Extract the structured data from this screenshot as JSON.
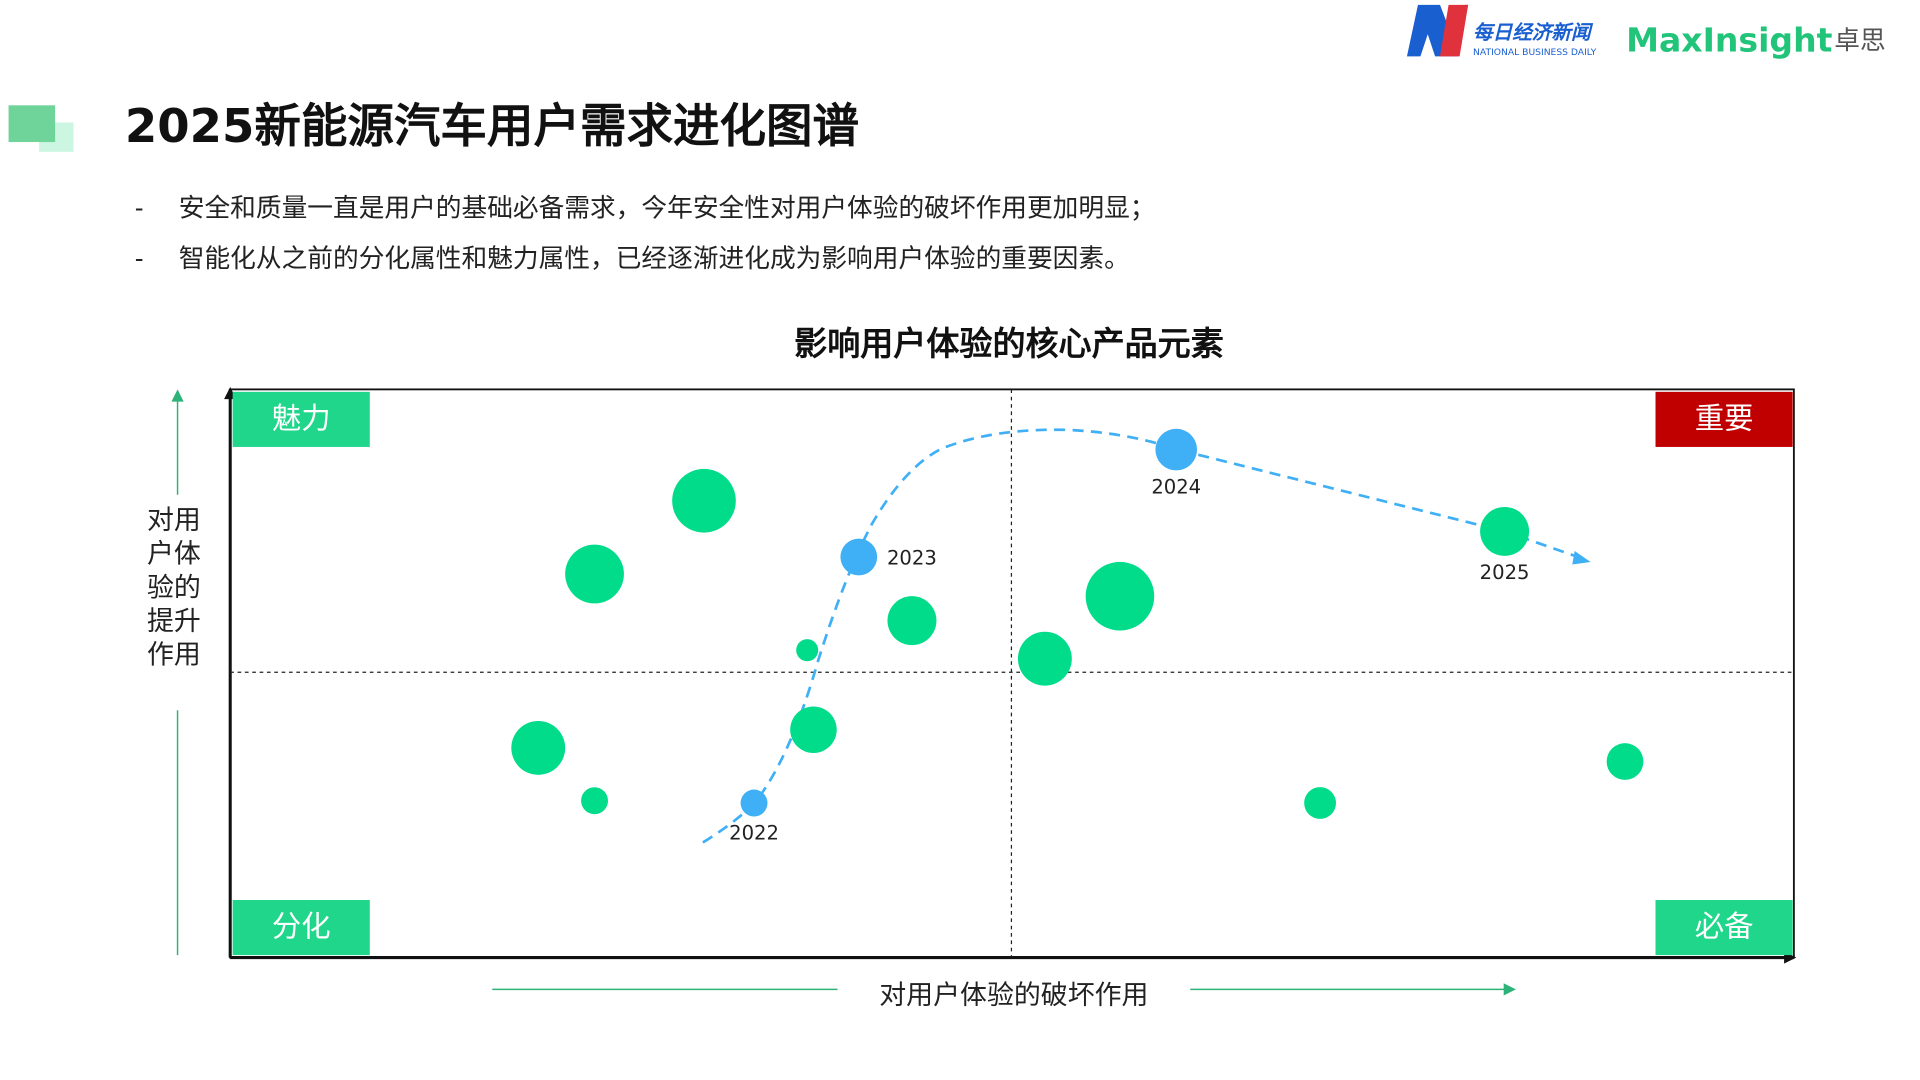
{
  "header": {
    "logo_cn": "每日经济新闻",
    "logo_en": "NATIONAL BUSINESS DAILY",
    "brand": "MaxInsight",
    "brand_cn": "卓思"
  },
  "title": "2025新能源汽车用户需求进化图谱",
  "bullets": [
    "安全和质量一直是用户的基础必备需求，今年安全性对用户体验的破坏作用更加明显；",
    "智能化从之前的分化属性和魅力属性，已经逐渐进化成为影响用户体验的重要因素。"
  ],
  "bullet_marker": "-",
  "chart_data": {
    "type": "bubble",
    "title": "影响用户体验的核心产品元素",
    "x_label": "对用户体验的破坏作用",
    "y_label_lines": [
      "对用",
      "户体",
      "验的",
      "提升",
      "作用"
    ],
    "quadrants": {
      "top_left": "魅力",
      "top_right": "重要",
      "bottom_left": "分化",
      "bottom_right": "必备"
    },
    "quadrant_colors": {
      "top_left": "#1fd68a",
      "top_right": "#c00000",
      "bottom_left": "#1fd68a",
      "bottom_right": "#1fd68a"
    },
    "xlim": [
      0,
      100
    ],
    "ylim": [
      0,
      100
    ],
    "series": [
      {
        "color": "#00dc8a",
        "x": [
          30.3,
          23.3,
          43.6,
          36.9,
          56.9,
          52.1,
          37.3,
          19.7,
          23.3,
          69.7,
          89.2,
          81.5
        ],
        "y": [
          80.4,
          67.5,
          59.3,
          54.1,
          63.6,
          52.6,
          40.1,
          36.9,
          27.6,
          27.2,
          34.5,
          75.0
        ],
        "sizes": [
          26,
          24,
          20,
          9,
          28,
          22,
          19,
          22,
          11,
          13,
          15,
          20
        ],
        "labels": [
          null,
          null,
          null,
          null,
          null,
          null,
          null,
          null,
          null,
          null,
          null,
          "2025"
        ]
      },
      {
        "color": "#3fb0f5",
        "x": [
          33.5,
          40.2,
          60.5
        ],
        "y": [
          27.2,
          70.5,
          89.4
        ],
        "sizes": [
          11,
          15,
          17
        ],
        "labels": [
          "2022",
          "2023",
          "2024"
        ]
      }
    ]
  }
}
